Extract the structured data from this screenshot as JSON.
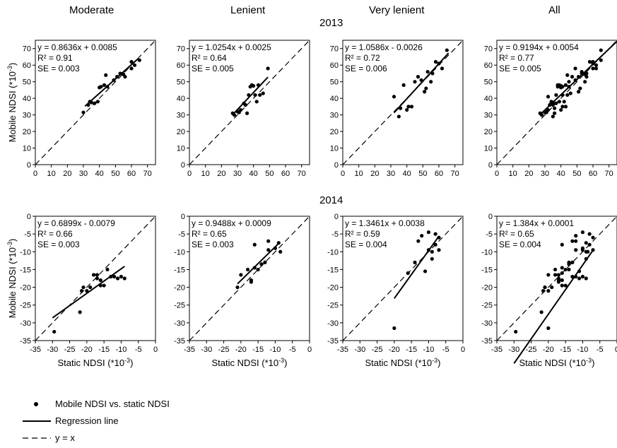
{
  "column_headers": [
    "Moderate",
    "Lenient",
    "Very lenient",
    "All"
  ],
  "year_headers": [
    "2013",
    "2014"
  ],
  "legend": {
    "points": "Mobile NDSI vs. static NDSI",
    "regression": "Regression line",
    "identity": "y = x"
  },
  "chart_data": [
    {
      "type": "scatter",
      "year": "2013",
      "group": "Moderate",
      "xlim": [
        0,
        75
      ],
      "ylim": [
        0,
        75
      ],
      "xticks": [
        0,
        10,
        20,
        30,
        40,
        50,
        60,
        70
      ],
      "yticks": [
        0,
        10,
        20,
        30,
        40,
        50,
        60,
        70
      ],
      "ylabel": "Mobile NDSI (*10⁻³)",
      "xlabel": "",
      "annotation": [
        "y = 0.8636x + 0.0085",
        "R² = 0.91",
        "SE = 0.003"
      ],
      "regression": {
        "x": [
          31,
          64
        ]
      },
      "points": [
        [
          30,
          31.5
        ],
        [
          33,
          36
        ],
        [
          34,
          38
        ],
        [
          35,
          37.5
        ],
        [
          37,
          37
        ],
        [
          39,
          38
        ],
        [
          40,
          46.5
        ],
        [
          41,
          47
        ],
        [
          43,
          48
        ],
        [
          44,
          54
        ],
        [
          45,
          47
        ],
        [
          49,
          51
        ],
        [
          51,
          53
        ],
        [
          53,
          55
        ],
        [
          55,
          54.5
        ],
        [
          56,
          53
        ],
        [
          60,
          58
        ],
        [
          60,
          62
        ],
        [
          62,
          60
        ],
        [
          65,
          63
        ]
      ]
    },
    {
      "type": "scatter",
      "year": "2013",
      "group": "Lenient",
      "xlim": [
        0,
        75
      ],
      "ylim": [
        0,
        75
      ],
      "xticks": [
        0,
        10,
        20,
        30,
        40,
        50,
        60,
        70
      ],
      "yticks": [
        0,
        10,
        20,
        30,
        40,
        50,
        60,
        70
      ],
      "ylabel": "",
      "xlabel": "",
      "annotation": [
        "y = 1.0254x + 0.0025",
        "R² = 0.64",
        "SE = 0.005"
      ],
      "regression": {
        "x": [
          28,
          49
        ]
      },
      "points": [
        [
          27,
          31
        ],
        [
          28,
          30
        ],
        [
          30,
          32
        ],
        [
          31,
          31.5
        ],
        [
          32,
          33
        ],
        [
          34,
          37
        ],
        [
          35,
          36
        ],
        [
          36,
          31
        ],
        [
          37,
          42
        ],
        [
          38,
          47
        ],
        [
          39,
          48
        ],
        [
          40,
          47.5
        ],
        [
          41,
          42
        ],
        [
          42,
          38
        ],
        [
          43,
          48
        ],
        [
          44,
          42
        ],
        [
          46,
          43
        ],
        [
          49,
          58
        ]
      ]
    },
    {
      "type": "scatter",
      "year": "2013",
      "group": "Very lenient",
      "xlim": [
        0,
        75
      ],
      "ylim": [
        0,
        75
      ],
      "xticks": [
        0,
        10,
        20,
        30,
        40,
        50,
        60,
        70
      ],
      "yticks": [
        0,
        10,
        20,
        30,
        40,
        50,
        60,
        70
      ],
      "ylabel": "",
      "xlabel": "",
      "annotation": [
        "y = 1.0586x - 0.0026",
        "R² = 0.72",
        "SE = 0.006"
      ],
      "regression": {
        "x": [
          32,
          66
        ]
      },
      "points": [
        [
          32,
          41
        ],
        [
          35,
          29
        ],
        [
          36,
          34
        ],
        [
          38,
          48
        ],
        [
          40,
          33
        ],
        [
          41,
          35
        ],
        [
          43,
          35
        ],
        [
          45,
          50
        ],
        [
          47,
          53
        ],
        [
          49,
          51
        ],
        [
          51,
          44
        ],
        [
          52,
          46
        ],
        [
          53,
          56
        ],
        [
          55,
          50
        ],
        [
          56,
          55
        ],
        [
          58,
          62
        ],
        [
          60,
          61
        ],
        [
          62,
          58
        ],
        [
          65,
          69
        ]
      ]
    },
    {
      "type": "scatter",
      "year": "2013",
      "group": "All",
      "xlim": [
        0,
        75
      ],
      "ylim": [
        0,
        75
      ],
      "xticks": [
        0,
        10,
        20,
        30,
        40,
        50,
        60,
        70
      ],
      "yticks": [
        0,
        10,
        20,
        30,
        40,
        50,
        60,
        70
      ],
      "ylabel": "",
      "xlabel": "",
      "annotation": [
        "y = 0.9194x + 0.0054",
        "R² = 0.77",
        "SE = 0.005"
      ],
      "regression": {
        "x": [
          27,
          75
        ]
      },
      "points": [
        [
          27,
          31
        ],
        [
          28,
          30
        ],
        [
          30,
          32
        ],
        [
          30,
          31.5
        ],
        [
          31,
          31.5
        ],
        [
          32,
          33
        ],
        [
          32,
          41
        ],
        [
          33,
          36
        ],
        [
          34,
          37
        ],
        [
          34,
          38
        ],
        [
          35,
          36
        ],
        [
          35,
          29
        ],
        [
          35,
          37.5
        ],
        [
          36,
          31
        ],
        [
          36,
          34
        ],
        [
          37,
          42
        ],
        [
          37,
          37
        ],
        [
          38,
          47
        ],
        [
          38,
          48
        ],
        [
          39,
          48
        ],
        [
          39,
          38
        ],
        [
          40,
          47.5
        ],
        [
          40,
          46.5
        ],
        [
          40,
          33
        ],
        [
          41,
          42
        ],
        [
          41,
          35
        ],
        [
          41,
          47
        ],
        [
          42,
          38
        ],
        [
          43,
          48
        ],
        [
          43,
          35
        ],
        [
          44,
          42
        ],
        [
          44,
          54
        ],
        [
          45,
          47
        ],
        [
          45,
          50
        ],
        [
          46,
          43
        ],
        [
          47,
          53
        ],
        [
          49,
          58
        ],
        [
          49,
          51
        ],
        [
          51,
          44
        ],
        [
          51,
          53
        ],
        [
          52,
          46
        ],
        [
          53,
          56
        ],
        [
          53,
          55
        ],
        [
          55,
          50
        ],
        [
          55,
          54.5
        ],
        [
          56,
          53
        ],
        [
          56,
          55
        ],
        [
          58,
          62
        ],
        [
          60,
          58
        ],
        [
          60,
          62
        ],
        [
          60,
          61
        ],
        [
          62,
          60
        ],
        [
          62,
          58
        ],
        [
          65,
          63
        ],
        [
          65,
          69
        ]
      ]
    },
    {
      "type": "scatter",
      "year": "2014",
      "group": "Moderate",
      "xlim": [
        -35,
        0
      ],
      "ylim": [
        -35,
        0
      ],
      "xticks": [
        -35,
        -30,
        -25,
        -20,
        -15,
        -10,
        -5,
        0
      ],
      "yticks": [
        -35,
        -30,
        -25,
        -20,
        -15,
        -10,
        -5,
        0
      ],
      "ylabel": "Mobile NDSI (*10⁻³)",
      "xlabel": "Static NDSI (*10⁻³)",
      "annotation": [
        "y = 0.6899x - 0.0079",
        "R² = 0.66",
        "SE = 0.003"
      ],
      "regression": {
        "x": [
          -30,
          -9
        ]
      },
      "points": [
        [
          -29.5,
          -32.5
        ],
        [
          -22,
          -27
        ],
        [
          -21.5,
          -21
        ],
        [
          -21,
          -20
        ],
        [
          -20,
          -21
        ],
        [
          -19,
          -20
        ],
        [
          -18,
          -16.5
        ],
        [
          -17,
          -17.5
        ],
        [
          -17,
          -16.5
        ],
        [
          -16,
          -19.5
        ],
        [
          -16,
          -18
        ],
        [
          -15,
          -19.5
        ],
        [
          -14,
          -15
        ],
        [
          -13,
          -17
        ],
        [
          -12,
          -17
        ],
        [
          -11,
          -17.5
        ],
        [
          -10,
          -17
        ],
        [
          -9,
          -17.5
        ]
      ]
    },
    {
      "type": "scatter",
      "year": "2014",
      "group": "Lenient",
      "xlim": [
        -35,
        0
      ],
      "ylim": [
        -35,
        0
      ],
      "xticks": [
        -35,
        -30,
        -25,
        -20,
        -15,
        -10,
        -5,
        0
      ],
      "yticks": [
        -35,
        -30,
        -25,
        -20,
        -15,
        -10,
        -5,
        0
      ],
      "ylabel": "",
      "xlabel": "Static NDSI (*10⁻³)",
      "annotation": [
        "y = 0.9488x + 0.0009",
        "R² = 0.65",
        "SE = 0.003"
      ],
      "regression": {
        "x": [
          -21,
          -9
        ]
      },
      "points": [
        [
          -21,
          -20
        ],
        [
          -20,
          -16.5
        ],
        [
          -18,
          -15
        ],
        [
          -17,
          -18.5
        ],
        [
          -17,
          -18
        ],
        [
          -16,
          -14.5
        ],
        [
          -16,
          -8
        ],
        [
          -15,
          -15
        ],
        [
          -14,
          -13.5
        ],
        [
          -13,
          -13
        ],
        [
          -12,
          -9.5
        ],
        [
          -12,
          -7
        ],
        [
          -10,
          -9
        ],
        [
          -9,
          -7.5
        ],
        [
          -8.5,
          -10
        ]
      ]
    },
    {
      "type": "scatter",
      "year": "2014",
      "group": "Very lenient",
      "xlim": [
        -35,
        0
      ],
      "ylim": [
        -35,
        0
      ],
      "xticks": [
        -35,
        -30,
        -25,
        -20,
        -15,
        -10,
        -5,
        0
      ],
      "yticks": [
        -35,
        -30,
        -25,
        -20,
        -15,
        -10,
        -5,
        0
      ],
      "ylabel": "",
      "xlabel": "Static NDSI (*10⁻³)",
      "annotation": [
        "y = 1.3461x + 0.0038",
        "R² = 0.59",
        "SE = 0.004"
      ],
      "regression": {
        "x": [
          -20,
          -7
        ]
      },
      "points": [
        [
          -20,
          -31.5
        ],
        [
          -16,
          -16
        ],
        [
          -14,
          -13
        ],
        [
          -13,
          -7
        ],
        [
          -12,
          -5.5
        ],
        [
          -11,
          -15.5
        ],
        [
          -10,
          -9.5
        ],
        [
          -10,
          -4.5
        ],
        [
          -9,
          -10
        ],
        [
          -9,
          -12
        ],
        [
          -8,
          -8
        ],
        [
          -8,
          -5
        ],
        [
          -7,
          -9.5
        ],
        [
          -7,
          -6
        ]
      ]
    },
    {
      "type": "scatter",
      "year": "2014",
      "group": "All",
      "xlim": [
        -35,
        0
      ],
      "ylim": [
        -35,
        0
      ],
      "xticks": [
        -35,
        -30,
        -25,
        -20,
        -15,
        -10,
        -5,
        0
      ],
      "yticks": [
        -35,
        -30,
        -25,
        -20,
        -15,
        -10,
        -5,
        0
      ],
      "ylabel": "",
      "xlabel": "Static NDSI (*10⁻³)",
      "annotation": [
        "y = 1.384x + 0.0001",
        "R² = 0.65",
        "SE = 0.004"
      ],
      "regression": {
        "x": [
          -30,
          -7
        ]
      },
      "points": [
        [
          -29.5,
          -32.5
        ],
        [
          -22,
          -27
        ],
        [
          -21.5,
          -21
        ],
        [
          -21,
          -20
        ],
        [
          -21,
          -20
        ],
        [
          -20,
          -21
        ],
        [
          -20,
          -31.5
        ],
        [
          -20,
          -16.5
        ],
        [
          -19,
          -20
        ],
        [
          -18,
          -16.5
        ],
        [
          -18,
          -15
        ],
        [
          -17,
          -17.5
        ],
        [
          -17,
          -16.5
        ],
        [
          -17,
          -18.5
        ],
        [
          -17,
          -18
        ],
        [
          -16,
          -19.5
        ],
        [
          -16,
          -18
        ],
        [
          -16,
          -14.5
        ],
        [
          -16,
          -8
        ],
        [
          -16,
          -16
        ],
        [
          -15,
          -19.5
        ],
        [
          -15,
          -15
        ],
        [
          -14,
          -15
        ],
        [
          -14,
          -13.5
        ],
        [
          -14,
          -13
        ],
        [
          -13,
          -17
        ],
        [
          -13,
          -13
        ],
        [
          -13,
          -7
        ],
        [
          -12,
          -17
        ],
        [
          -12,
          -9.5
        ],
        [
          -12,
          -7
        ],
        [
          -12,
          -5.5
        ],
        [
          -11,
          -17.5
        ],
        [
          -11,
          -15.5
        ],
        [
          -10,
          -17
        ],
        [
          -10,
          -9
        ],
        [
          -10,
          -9.5
        ],
        [
          -10,
          -4.5
        ],
        [
          -9,
          -17.5
        ],
        [
          -9,
          -7.5
        ],
        [
          -9,
          -10
        ],
        [
          -9,
          -12
        ],
        [
          -8.5,
          -10
        ],
        [
          -8,
          -8
        ],
        [
          -8,
          -5
        ],
        [
          -7,
          -9.5
        ],
        [
          -7,
          -6
        ]
      ]
    }
  ]
}
